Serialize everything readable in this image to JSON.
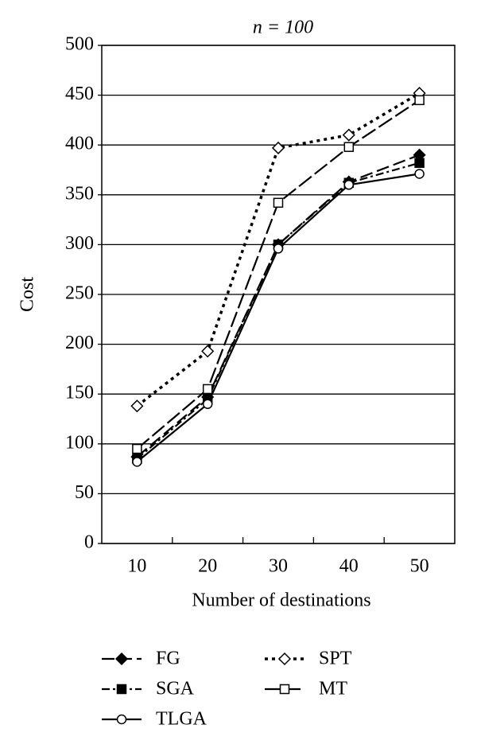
{
  "chart_data": {
    "type": "line",
    "title": "n = 100",
    "x_label": "Number of destinations",
    "y_label": "Cost",
    "categories": [
      "10",
      "20",
      "30",
      "40",
      "50"
    ],
    "ylim": [
      0,
      500
    ],
    "yticks": [
      0,
      50,
      100,
      150,
      200,
      250,
      300,
      350,
      400,
      450,
      500
    ],
    "grid": true,
    "series": [
      {
        "name": "FG",
        "color": "#000000",
        "marker": "diamond-filled",
        "dash": "16 6",
        "values": [
          87,
          147,
          300,
          363,
          390
        ]
      },
      {
        "name": "SGA",
        "color": "#000000",
        "marker": "square-filled",
        "dash": "10 4 3 4",
        "values": [
          85,
          145,
          300,
          362,
          382
        ]
      },
      {
        "name": "TLGA",
        "color": "#000000",
        "marker": "circle-open",
        "dash": "none",
        "values": [
          82,
          140,
          296,
          360,
          371
        ]
      },
      {
        "name": "SPT",
        "color": "#000000",
        "marker": "diamond-open",
        "dash": "4 5",
        "values": [
          138,
          193,
          397,
          410,
          452
        ]
      },
      {
        "name": "MT",
        "color": "#000000",
        "marker": "square-open",
        "dash": "20 5",
        "values": [
          95,
          155,
          342,
          398,
          445
        ]
      }
    ]
  }
}
